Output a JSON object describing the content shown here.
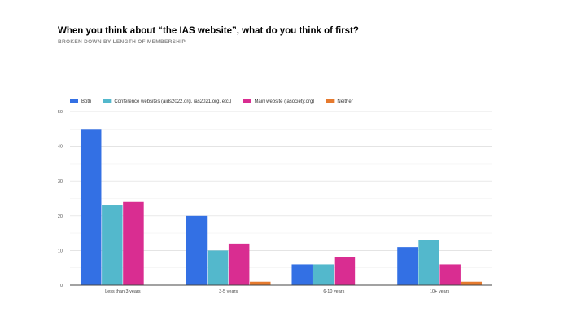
{
  "title": "When you think about “the IAS website”, what do you think of first?",
  "subtitle": "BROKEN DOWN BY LENGTH OF MEMBERSHIP",
  "chart_data": {
    "type": "bar",
    "categories": [
      "Less than 3 years",
      "3-5 years",
      "6-10 years",
      "10+ years"
    ],
    "series": [
      {
        "name": "Both",
        "color": "#3370E4",
        "values": [
          45,
          20,
          6,
          11
        ]
      },
      {
        "name": "Conference websites (aids2022.org, ias2021.org, etc.)",
        "color": "#53B8CC",
        "values": [
          23,
          10,
          6,
          13
        ]
      },
      {
        "name": "Main website (iasociety.org)",
        "color": "#D92D91",
        "values": [
          24,
          12,
          8,
          6
        ]
      },
      {
        "name": "Neither",
        "color": "#E67A2E",
        "values": [
          0,
          1,
          0,
          1
        ]
      }
    ],
    "ylim": [
      0,
      50
    ],
    "yticks": [
      0,
      10,
      20,
      30,
      40,
      50
    ],
    "grid": true,
    "legend_position": "top-left",
    "xlabel": "",
    "ylabel": ""
  }
}
